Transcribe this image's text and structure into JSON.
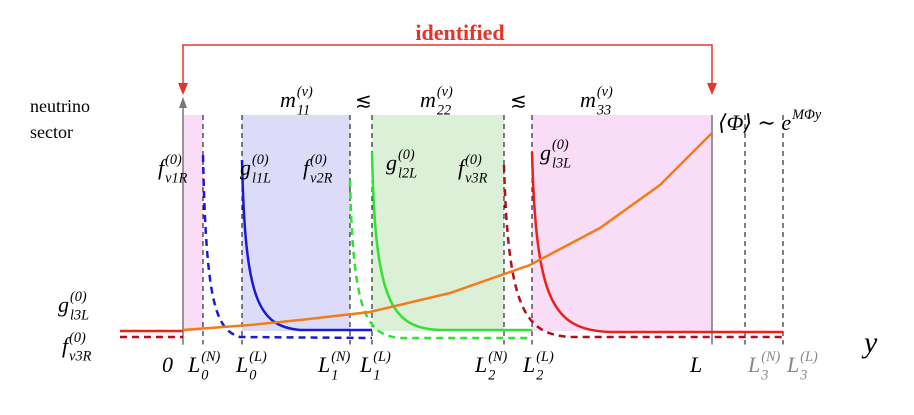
{
  "title": "identified",
  "sector_label": [
    "neutrino",
    "sector"
  ],
  "masses": [
    {
      "base": "m",
      "sup": "(ν)",
      "sub": "11"
    },
    {
      "base": "m",
      "sup": "(ν)",
      "sub": "22"
    },
    {
      "base": "m",
      "sup": "(ν)",
      "sub": "33"
    }
  ],
  "relations": [
    "≲",
    "≲"
  ],
  "vev": {
    "base": "⟨Φ⟩ ∼ e",
    "sup": "MΦy"
  },
  "fields": [
    {
      "base": "f",
      "sup": "(0)",
      "sub": "ν1R"
    },
    {
      "base": "g",
      "sup": "(0)",
      "sub": "l1L"
    },
    {
      "base": "f",
      "sup": "(0)",
      "sub": "ν2R"
    },
    {
      "base": "g",
      "sup": "(0)",
      "sub": "l2L"
    },
    {
      "base": "f",
      "sup": "(0)",
      "sub": "ν3R"
    },
    {
      "base": "g",
      "sup": "(0)",
      "sub": "l3L"
    },
    {
      "base": "g",
      "sup": "(0)",
      "sub": "l3L"
    },
    {
      "base": "f",
      "sup": "(0)",
      "sub": "ν3R"
    }
  ],
  "axis": {
    "name": "y",
    "labels": [
      {
        "base": "0"
      },
      {
        "base": "L",
        "sup": "(N)",
        "sub": "0"
      },
      {
        "base": "L",
        "sup": "(L)",
        "sub": "0"
      },
      {
        "base": "L",
        "sup": "(N)",
        "sub": "1"
      },
      {
        "base": "L",
        "sup": "(L)",
        "sub": "1"
      },
      {
        "base": "L",
        "sup": "(N)",
        "sub": "2"
      },
      {
        "base": "L",
        "sup": "(L)",
        "sub": "2"
      },
      {
        "base": "L"
      },
      {
        "base": "L",
        "sup": "(N)",
        "sub": "3"
      },
      {
        "base": "L",
        "sup": "(L)",
        "sub": "3"
      }
    ]
  }
}
